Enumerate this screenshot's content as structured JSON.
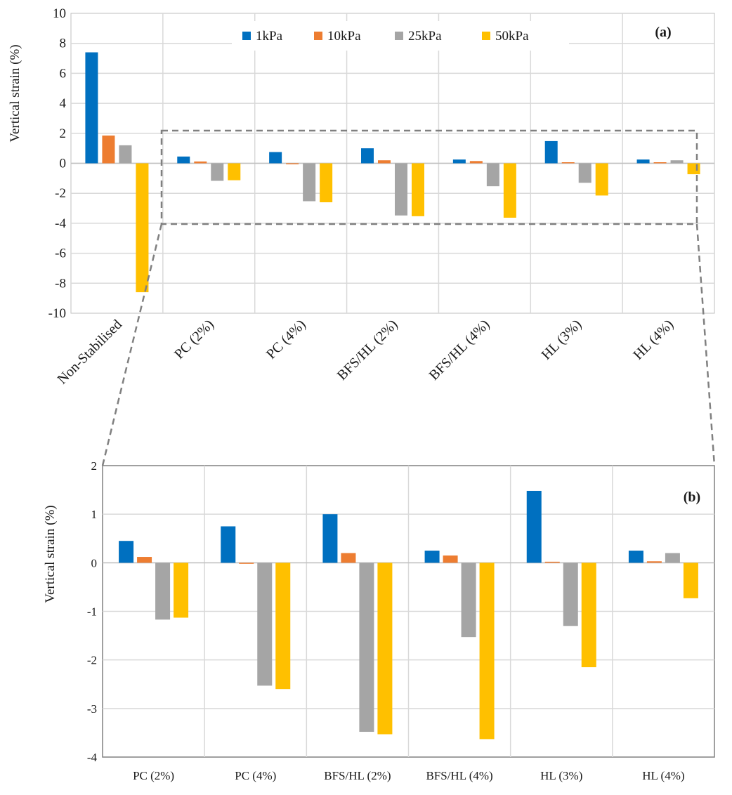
{
  "series_names": [
    "1kPa",
    "10kPa",
    "25kPa",
    "50kPa"
  ],
  "colors": {
    "1kPa": "#0070C0",
    "10kPa": "#ED7D31",
    "25kPa": "#A5A5A5",
    "50kPa": "#FFC000",
    "grid": "#d9d9d9",
    "axis": "#7f7f7f",
    "zoom_box": "#808080"
  },
  "chart_data": [
    {
      "id": "a",
      "type": "bar",
      "panel_label": "(a)",
      "ylabel": "Vertical strain (%)",
      "xlabel": "",
      "ylim": [
        -10,
        10
      ],
      "yticks": [
        -10,
        -8,
        -6,
        -4,
        -2,
        0,
        2,
        4,
        6,
        8,
        10
      ],
      "tick_labels_rotated": true,
      "legend": "top-center",
      "categories": [
        "Non-Stabilised",
        "PC (2%)",
        "PC (4%)",
        "BFS/HL (2%)",
        "BFS/HL (4%)",
        "HL (3%)",
        "HL (4%)"
      ],
      "series": [
        {
          "name": "1kPa",
          "values": [
            7.4,
            0.45,
            0.75,
            1.0,
            0.25,
            1.48,
            0.25
          ]
        },
        {
          "name": "10kPa",
          "values": [
            1.85,
            0.12,
            -0.02,
            0.2,
            0.15,
            0.0,
            0.03
          ]
        },
        {
          "name": "25kPa",
          "values": [
            1.2,
            -1.17,
            -2.53,
            -3.48,
            -1.53,
            -1.3,
            0.2
          ]
        },
        {
          "name": "50kPa",
          "values": [
            -8.6,
            -1.13,
            -2.6,
            -3.53,
            -3.63,
            -2.15,
            -0.73
          ]
        }
      ],
      "zoom_region": {
        "categories": [
          "PC (2%)",
          "HL (4%)"
        ],
        "y_range": [
          -4,
          2
        ]
      }
    },
    {
      "id": "b",
      "type": "bar",
      "panel_label": "(b)",
      "ylabel": "Vertical strain (%)",
      "xlabel": "",
      "ylim": [
        -4,
        2
      ],
      "yticks": [
        -4,
        -3,
        -2,
        -1,
        0,
        1,
        2
      ],
      "tick_labels_rotated": false,
      "legend": "none",
      "categories": [
        "PC (2%)",
        "PC (4%)",
        "BFS/HL (2%)",
        "BFS/HL (4%)",
        "HL (3%)",
        "HL (4%)"
      ],
      "series": [
        {
          "name": "1kPa",
          "values": [
            0.45,
            0.75,
            1.0,
            0.25,
            1.48,
            0.25
          ]
        },
        {
          "name": "10kPa",
          "values": [
            0.12,
            -0.02,
            0.2,
            0.15,
            0.0,
            0.03
          ]
        },
        {
          "name": "25kPa",
          "values": [
            -1.17,
            -2.53,
            -3.48,
            -1.53,
            -1.3,
            0.2
          ]
        },
        {
          "name": "50kPa",
          "values": [
            -1.13,
            -2.6,
            -3.53,
            -3.63,
            -2.15,
            -0.73
          ]
        }
      ]
    }
  ]
}
